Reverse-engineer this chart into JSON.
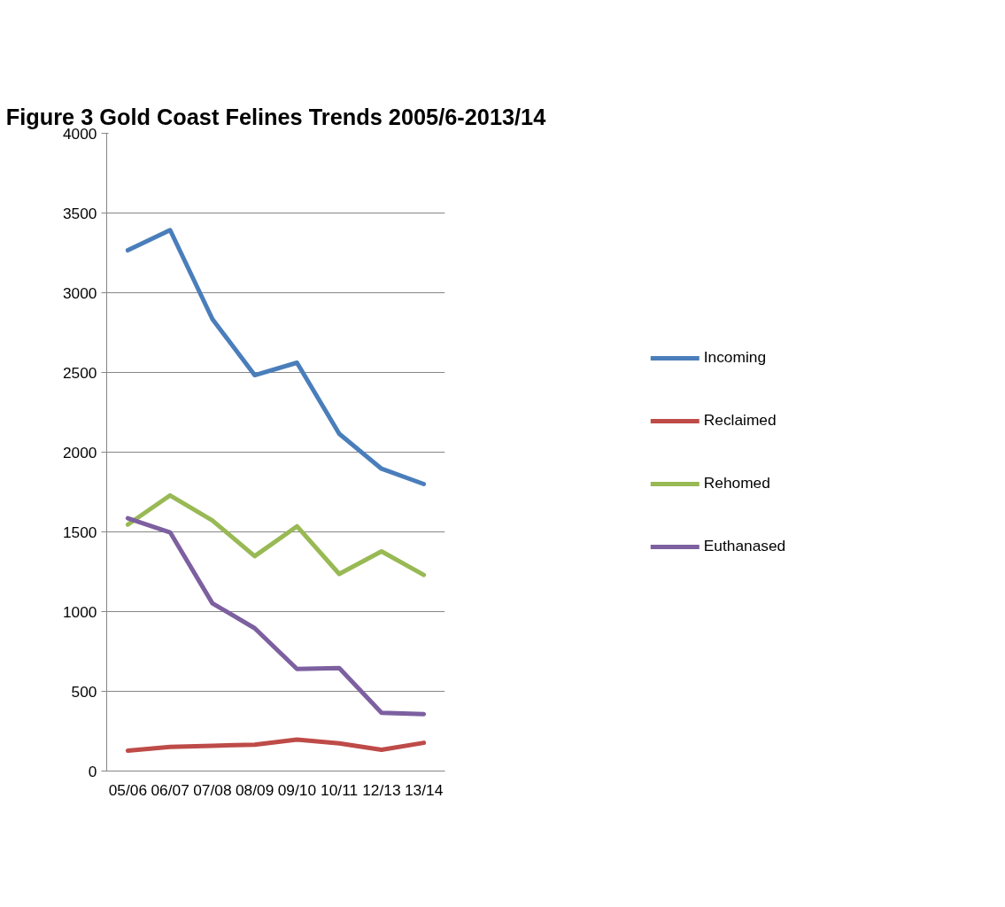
{
  "chart_data": {
    "type": "line",
    "title": "Figure 3 Gold Coast Felines Trends 2005/6-2013/14",
    "categories": [
      "05/06",
      "06/07",
      "07/08",
      "08/09",
      "09/10",
      "10/11",
      "12/13",
      "13/14"
    ],
    "series": [
      {
        "name": "Incoming",
        "color": "#4a7ebb",
        "values": [
          3266,
          3393,
          2835,
          2483,
          2561,
          2115,
          1896,
          1800
        ]
      },
      {
        "name": "Reclaimed",
        "color": "#be4b48",
        "values": [
          128,
          151,
          159,
          165,
          197,
          174,
          133,
          177
        ]
      },
      {
        "name": "Rehomed",
        "color": "#98b954",
        "values": [
          1546,
          1729,
          1572,
          1348,
          1535,
          1236,
          1378,
          1230
        ]
      },
      {
        "name": "Euthanased",
        "color": "#7d60a0",
        "values": [
          1586,
          1497,
          1052,
          896,
          640,
          646,
          365,
          357
        ]
      }
    ],
    "ylim": [
      0,
      4000
    ],
    "yticks": [
      0,
      500,
      1000,
      1500,
      2000,
      2500,
      3000,
      3500,
      4000
    ],
    "grid": "y",
    "legend": "right",
    "marker": "none",
    "line_style": "solid"
  }
}
